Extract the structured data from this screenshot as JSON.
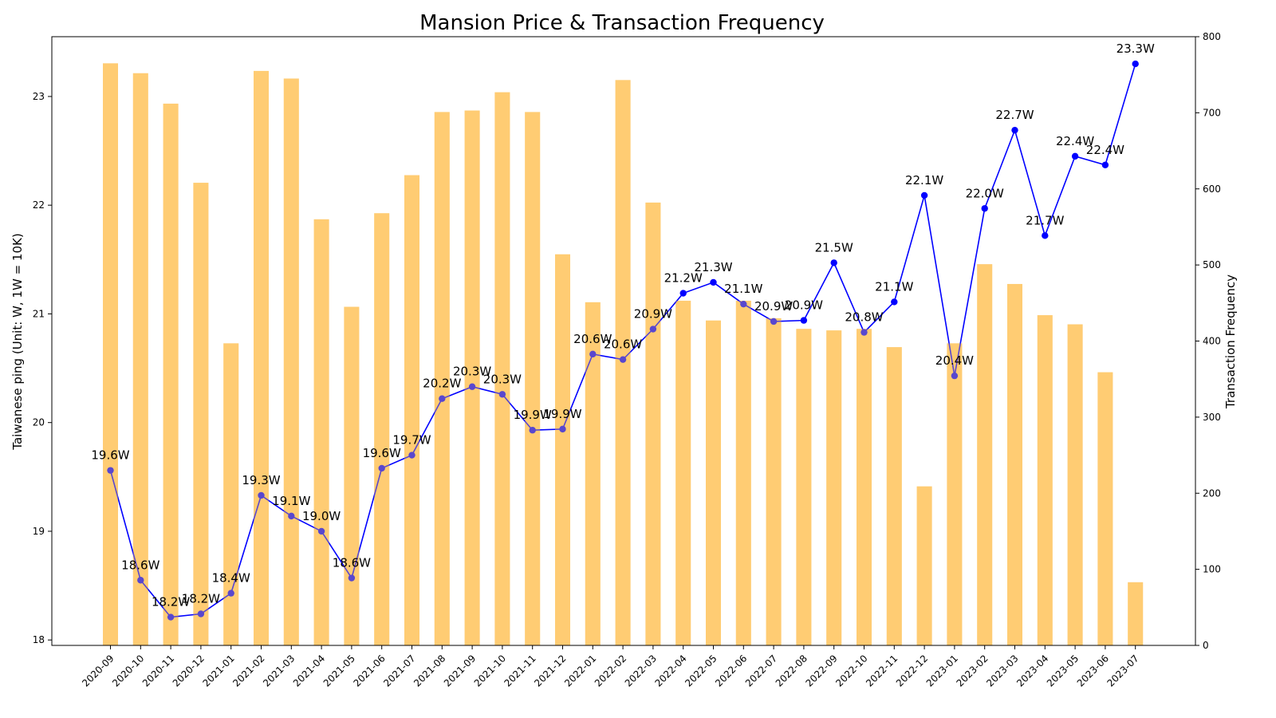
{
  "chart_data": {
    "type": "bar+line",
    "title": "Mansion Price & Transaction Frequency",
    "ylabel_left": "Taiwanese ping (Unit: W, 1W = 10K)",
    "ylabel_right": "Transaction Frequency",
    "xlabel": "",
    "ylim_left": [
      17.95,
      23.55
    ],
    "ylim_right": [
      0,
      800
    ],
    "yticks_left": [
      18,
      19,
      20,
      21,
      22,
      23
    ],
    "yticks_right": [
      0,
      100,
      200,
      300,
      400,
      500,
      600,
      700,
      800
    ],
    "grid": false,
    "categories": [
      "2020-09",
      "2020-10",
      "2020-11",
      "2020-12",
      "2021-01",
      "2021-02",
      "2021-03",
      "2021-04",
      "2021-05",
      "2021-06",
      "2021-07",
      "2021-08",
      "2021-09",
      "2021-10",
      "2021-11",
      "2021-12",
      "2022-01",
      "2022-02",
      "2022-03",
      "2022-04",
      "2022-05",
      "2022-06",
      "2022-07",
      "2022-08",
      "2022-09",
      "2022-10",
      "2022-11",
      "2022-12",
      "2023-01",
      "2023-02",
      "2023-03",
      "2023-04",
      "2023-05",
      "2023-06",
      "2023-07"
    ],
    "series": [
      {
        "type": "bar",
        "axis": "right",
        "color": "#FFCC73",
        "values": [
          765,
          752,
          712,
          608,
          397,
          755,
          745,
          560,
          445,
          568,
          618,
          701,
          703,
          727,
          701,
          514,
          451,
          743,
          582,
          453,
          427,
          453,
          430,
          416,
          414,
          416,
          392,
          209,
          397,
          501,
          475,
          434,
          422,
          359,
          83
        ]
      },
      {
        "type": "line",
        "axis": "left",
        "color": "#0000FF",
        "values": [
          19.56,
          18.55,
          18.21,
          18.24,
          18.43,
          19.33,
          19.14,
          19.0,
          18.57,
          19.58,
          19.7,
          20.22,
          20.33,
          20.26,
          19.93,
          19.94,
          20.63,
          20.58,
          20.86,
          21.19,
          21.29,
          21.09,
          20.93,
          20.94,
          21.47,
          20.83,
          21.11,
          22.09,
          20.43,
          21.97,
          22.69,
          21.72,
          22.45,
          22.37,
          23.3
        ],
        "data_labels": [
          "19.6W",
          "18.6W",
          "18.2W",
          "18.2W",
          "18.4W",
          "19.3W",
          "19.1W",
          "19.0W",
          "18.6W",
          "19.6W",
          "19.7W",
          "20.2W",
          "20.3W",
          "20.3W",
          "19.9W",
          "19.9W",
          "20.6W",
          "20.6W",
          "20.9W",
          "21.2W",
          "21.3W",
          "21.1W",
          "20.9W",
          "20.9W",
          "21.5W",
          "20.8W",
          "21.1W",
          "22.1W",
          "20.4W",
          "22.0W",
          "22.7W",
          "21.7W",
          "22.4W",
          "22.4W",
          "23.3W"
        ]
      }
    ]
  }
}
